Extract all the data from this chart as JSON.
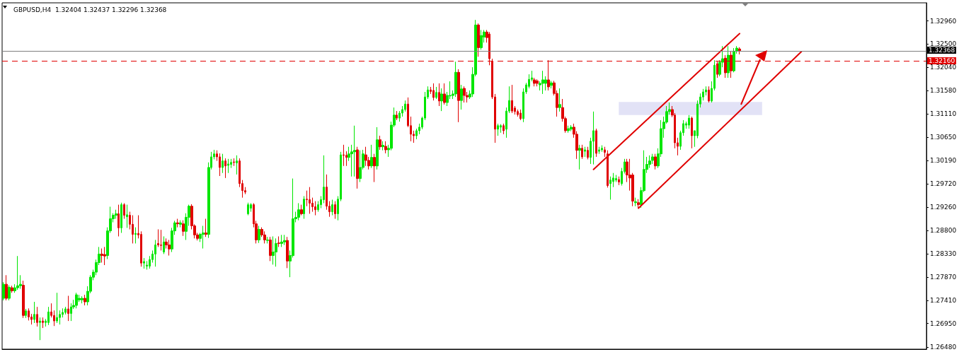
{
  "chart_data": {
    "type": "candlestick",
    "title": "GBPUSD,H4  1.32404 1.32437 1.32296 1.32368",
    "categories": [
      null,
      null,
      null,
      null,
      null,
      null,
      null,
      null,
      null,
      null,
      null,
      null,
      null,
      null,
      null,
      null,
      null,
      null,
      null,
      null,
      null,
      null,
      null,
      null,
      null,
      null,
      null,
      null,
      null,
      null,
      null,
      null,
      null,
      null,
      null,
      null,
      null,
      null,
      null,
      null,
      null,
      null,
      null,
      null,
      null,
      null,
      null,
      null,
      null,
      null,
      null,
      null,
      null,
      null,
      null,
      null,
      null,
      null,
      null,
      null,
      null,
      null,
      null,
      null,
      null,
      null,
      null,
      null,
      null,
      null,
      null,
      null,
      null,
      null,
      null,
      null,
      null,
      null,
      null,
      null,
      null,
      null,
      null,
      null,
      null,
      null,
      null,
      null,
      null,
      null,
      null,
      null,
      null,
      null,
      null,
      null,
      null,
      null,
      null,
      null,
      null,
      null,
      null,
      null,
      null,
      null,
      null,
      null,
      null,
      null,
      null,
      null,
      null,
      null,
      null,
      null,
      null,
      null,
      null,
      null,
      null,
      null,
      null,
      null,
      null,
      null,
      null,
      null,
      null,
      null,
      null,
      null,
      null,
      null,
      null,
      null,
      null,
      null,
      null,
      null,
      null,
      null,
      null,
      null,
      null,
      null,
      null,
      null,
      null,
      null,
      null,
      null,
      null,
      null,
      null,
      null,
      null,
      null,
      null,
      null,
      null,
      null,
      null,
      null,
      null,
      null,
      null,
      null,
      null,
      null,
      null,
      null,
      null,
      null,
      null,
      null,
      null,
      null,
      null,
      null,
      null,
      null,
      null,
      null,
      null,
      null,
      null,
      null,
      null,
      null,
      null,
      null,
      null,
      null,
      null,
      null,
      null,
      null,
      null,
      null,
      null,
      null,
      null,
      null,
      null,
      null,
      null,
      null,
      null,
      null,
      null,
      null,
      null,
      null,
      null,
      null,
      null,
      null,
      null,
      null,
      null,
      null,
      null,
      null,
      null,
      null,
      null,
      null,
      null,
      null,
      null,
      null,
      null,
      null,
      null,
      null,
      null,
      null,
      null,
      null,
      null,
      null,
      null,
      null,
      null,
      null,
      null,
      null,
      null,
      null,
      null,
      null,
      null,
      null,
      null,
      null,
      null,
      null,
      null,
      null,
      null,
      null,
      null,
      null,
      null,
      null,
      null,
      null,
      null,
      null,
      null,
      null,
      null,
      null,
      null,
      null,
      null,
      null,
      null,
      null,
      null,
      null,
      null,
      null,
      null,
      null,
      null,
      null,
      null,
      null,
      null,
      null,
      null,
      null,
      null,
      null,
      null,
      null,
      null,
      null,
      null,
      null,
      null,
      null,
      null,
      null,
      null,
      null,
      null,
      null,
      null,
      null,
      null,
      null,
      null,
      null,
      null,
      null,
      null,
      null,
      null,
      null,
      null,
      null,
      null,
      null,
      null,
      null,
      null
    ],
    "ohlc": [
      [
        1.2745,
        1.2777,
        1.2741,
        1.2773
      ],
      [
        1.2773,
        1.2791,
        1.2741,
        1.2745
      ],
      [
        1.2745,
        1.2771,
        1.2741,
        1.2767
      ],
      [
        1.2766,
        1.277,
        1.2756,
        1.276
      ],
      [
        1.276,
        1.2773,
        1.2756,
        1.2766
      ],
      [
        1.2766,
        1.2829,
        1.2762,
        1.277
      ],
      [
        1.277,
        1.2791,
        1.2764,
        1.2773
      ],
      [
        1.2771,
        1.278,
        1.2706,
        1.2711
      ],
      [
        1.2711,
        1.2724,
        1.2706,
        1.272
      ],
      [
        1.272,
        1.2725,
        1.2701,
        1.2708
      ],
      [
        1.2708,
        1.2714,
        1.2693,
        1.2703
      ],
      [
        1.2703,
        1.2738,
        1.2696,
        1.2713
      ],
      [
        1.2713,
        1.2728,
        1.2689,
        1.2697
      ],
      [
        1.2697,
        1.2707,
        1.2662,
        1.27
      ],
      [
        1.27,
        1.2707,
        1.2686,
        1.2697
      ],
      [
        1.2697,
        1.2704,
        1.2689,
        1.27
      ],
      [
        1.2697,
        1.2728,
        1.2692,
        1.2718
      ],
      [
        1.2718,
        1.2735,
        1.2707,
        1.2711
      ],
      [
        1.2711,
        1.2721,
        1.269,
        1.27
      ],
      [
        1.27,
        1.2756,
        1.2696,
        1.2707
      ],
      [
        1.2707,
        1.2721,
        1.2693,
        1.2713
      ],
      [
        1.2713,
        1.2725,
        1.2707,
        1.2717
      ],
      [
        1.2717,
        1.2728,
        1.2713,
        1.2724
      ],
      [
        1.2724,
        1.275,
        1.27,
        1.2715
      ],
      [
        1.2715,
        1.2735,
        1.27,
        1.2728
      ],
      [
        1.2728,
        1.2742,
        1.2724,
        1.2731
      ],
      [
        1.2731,
        1.2756,
        1.2725,
        1.2752
      ],
      [
        1.2742,
        1.2752,
        1.2738,
        1.2745
      ],
      [
        1.2742,
        1.2749,
        1.2735,
        1.2745
      ],
      [
        1.2745,
        1.2752,
        1.2731,
        1.2738
      ],
      [
        1.2738,
        1.2769,
        1.2731,
        1.2759
      ],
      [
        1.2759,
        1.2791,
        1.2755,
        1.2787
      ],
      [
        1.2787,
        1.2802,
        1.2781,
        1.2797
      ],
      [
        1.2797,
        1.2822,
        1.2791,
        1.2816
      ],
      [
        1.2816,
        1.2847,
        1.2811,
        1.2833
      ],
      [
        1.2833,
        1.2844,
        1.2816,
        1.283
      ],
      [
        1.2832,
        1.2847,
        1.2811,
        1.2829
      ],
      [
        1.283,
        1.2886,
        1.2823,
        1.2879
      ],
      [
        1.2879,
        1.2927,
        1.2875,
        1.2903
      ],
      [
        1.2903,
        1.2914,
        1.2896,
        1.291
      ],
      [
        1.291,
        1.2921,
        1.2903,
        1.2913
      ],
      [
        1.2913,
        1.2931,
        1.2868,
        1.2885
      ],
      [
        1.2885,
        1.2935,
        1.2875,
        1.2931
      ],
      [
        1.2931,
        1.2934,
        1.2903,
        1.291
      ],
      [
        1.2907,
        1.2931,
        1.2885,
        1.2911
      ],
      [
        1.291,
        1.2917,
        1.2882,
        1.2892
      ],
      [
        1.2892,
        1.291,
        1.2854,
        1.2872
      ],
      [
        1.2872,
        1.2886,
        1.2854,
        1.2874
      ],
      [
        1.2874,
        1.291,
        1.2864,
        1.2871
      ],
      [
        1.2872,
        1.2878,
        1.2808,
        1.2815
      ],
      [
        1.2815,
        1.2825,
        1.2804,
        1.2818
      ],
      [
        1.2809,
        1.2819,
        1.2802,
        1.2811
      ],
      [
        1.2809,
        1.2829,
        1.2804,
        1.2822
      ],
      [
        1.2822,
        1.284,
        1.2816,
        1.2833
      ],
      [
        1.2833,
        1.2861,
        1.2808,
        1.2851
      ],
      [
        1.2854,
        1.2882,
        1.2847,
        1.2851
      ],
      [
        1.2851,
        1.2881,
        1.284,
        1.285
      ],
      [
        1.2837,
        1.2868,
        1.2833,
        1.2857
      ],
      [
        1.2857,
        1.2864,
        1.2844,
        1.2851
      ],
      [
        1.2851,
        1.2861,
        1.283,
        1.2843
      ],
      [
        1.2843,
        1.2885,
        1.2837,
        1.2879
      ],
      [
        1.2879,
        1.2899,
        1.2871,
        1.2895
      ],
      [
        1.2895,
        1.2903,
        1.2886,
        1.2893
      ],
      [
        1.2892,
        1.29,
        1.2886,
        1.2895
      ],
      [
        1.2893,
        1.29,
        1.2869,
        1.2878
      ],
      [
        1.2878,
        1.2914,
        1.2861,
        1.2906
      ],
      [
        1.2906,
        1.2931,
        1.2889,
        1.2928
      ],
      [
        1.2928,
        1.2932,
        1.2882,
        1.2889
      ],
      [
        1.2889,
        1.2892,
        1.2864,
        1.2871
      ],
      [
        1.2871,
        1.2875,
        1.286,
        1.2864
      ],
      [
        1.2864,
        1.2875,
        1.2857,
        1.2872
      ],
      [
        1.2872,
        1.2889,
        1.2844,
        1.2875
      ],
      [
        1.2875,
        1.2903,
        1.2867,
        1.2872
      ],
      [
        1.2872,
        1.3015,
        1.2865,
        1.3005
      ],
      [
        1.3005,
        1.3036,
        1.3001,
        1.3026
      ],
      [
        1.3026,
        1.304,
        1.3021,
        1.3032
      ],
      [
        1.3032,
        1.3039,
        1.3018,
        1.3026
      ],
      [
        1.3026,
        1.3033,
        1.2988,
        1.3005
      ],
      [
        1.3005,
        1.3032,
        1.2994,
        1.3018
      ],
      [
        1.3018,
        1.3023,
        1.2984,
        1.3008
      ],
      [
        1.3009,
        1.3022,
        1.2994,
        1.3012
      ],
      [
        1.3011,
        1.3022,
        1.3004,
        1.3015
      ],
      [
        1.3016,
        1.3023,
        1.3008,
        1.3015
      ],
      [
        1.3014,
        1.3029,
        1.2991,
        1.3018
      ],
      [
        1.3018,
        1.3023,
        1.2966,
        1.2973
      ],
      [
        1.2973,
        1.298,
        1.2945,
        1.2959
      ],
      [
        1.2959,
        1.2966,
        1.2952,
        1.2956
      ],
      [
        1.2913,
        1.2935,
        1.291,
        1.2931
      ],
      [
        1.2924,
        1.2934,
        1.2917,
        1.2931
      ],
      [
        1.2931,
        1.2934,
        1.2886,
        1.2893
      ],
      [
        1.2893,
        1.2899,
        1.2854,
        1.2861
      ],
      [
        1.2861,
        1.2889,
        1.2855,
        1.2882
      ],
      [
        1.2882,
        1.2886,
        1.2867,
        1.2871
      ],
      [
        1.2871,
        1.2878,
        1.2854,
        1.2861
      ],
      [
        1.286,
        1.2867,
        1.2854,
        1.2861
      ],
      [
        1.2861,
        1.2867,
        1.2819,
        1.283
      ],
      [
        1.283,
        1.2868,
        1.2812,
        1.2837
      ],
      [
        1.2837,
        1.2864,
        1.2808,
        1.2854
      ],
      [
        1.2855,
        1.2868,
        1.2847,
        1.2854
      ],
      [
        1.2854,
        1.2871,
        1.2847,
        1.2857
      ],
      [
        1.2857,
        1.2871,
        1.2851,
        1.286
      ],
      [
        1.286,
        1.2867,
        1.2805,
        1.2819
      ],
      [
        1.2819,
        1.284,
        1.2787,
        1.283
      ],
      [
        1.283,
        1.2983,
        1.2826,
        1.2903
      ],
      [
        1.2903,
        1.2917,
        1.2896,
        1.2906
      ],
      [
        1.2906,
        1.2934,
        1.29,
        1.2921
      ],
      [
        1.2921,
        1.2931,
        1.291,
        1.2913
      ],
      [
        1.2913,
        1.2948,
        1.2903,
        1.2942
      ],
      [
        1.2942,
        1.2959,
        1.2928,
        1.2941
      ],
      [
        1.2941,
        1.2966,
        1.2913,
        1.2934
      ],
      [
        1.2934,
        1.2945,
        1.2917,
        1.2927
      ],
      [
        1.2927,
        1.2938,
        1.291,
        1.2921
      ],
      [
        1.2921,
        1.2938,
        1.2917,
        1.2931
      ],
      [
        1.2931,
        1.2948,
        1.2924,
        1.2941
      ],
      [
        1.2941,
        1.3029,
        1.2934,
        1.2966
      ],
      [
        1.2966,
        1.2991,
        1.2921,
        1.2928
      ],
      [
        1.2928,
        1.2938,
        1.2907,
        1.2917
      ],
      [
        1.2917,
        1.2941,
        1.291,
        1.2931
      ],
      [
        1.2931,
        1.2938,
        1.2903,
        1.2913
      ],
      [
        1.2913,
        1.2948,
        1.29,
        1.2942
      ],
      [
        1.2942,
        1.3036,
        1.2938,
        1.303
      ],
      [
        1.303,
        1.305,
        1.3008,
        1.3029
      ],
      [
        1.3029,
        1.3037,
        1.3008,
        1.3025
      ],
      [
        1.3025,
        1.3046,
        1.3018,
        1.3032
      ],
      [
        1.3032,
        1.305,
        1.2987,
        1.3036
      ],
      [
        1.3036,
        1.3088,
        1.2987,
        1.3039
      ],
      [
        1.304,
        1.3046,
        1.2963,
        1.2983
      ],
      [
        1.2983,
        1.3039,
        1.2976,
        1.3005
      ],
      [
        1.3005,
        1.304,
        1.3001,
        1.3032
      ],
      [
        1.303,
        1.3046,
        1.3008,
        1.3019
      ],
      [
        1.3019,
        1.3026,
        1.3001,
        1.3008
      ],
      [
        1.3008,
        1.305,
        1.3004,
        1.3025
      ],
      [
        1.3025,
        1.3032,
        1.2976,
        1.3008
      ],
      [
        1.3008,
        1.3085,
        1.3001,
        1.306
      ],
      [
        1.306,
        1.3068,
        1.304,
        1.3046
      ],
      [
        1.3046,
        1.3057,
        1.3039,
        1.3049
      ],
      [
        1.3047,
        1.3057,
        1.3033,
        1.304
      ],
      [
        1.304,
        1.305,
        1.3026,
        1.3043
      ],
      [
        1.3043,
        1.3096,
        1.3039,
        1.3089
      ],
      [
        1.3089,
        1.3124,
        1.3085,
        1.3109
      ],
      [
        1.3109,
        1.3117,
        1.3099,
        1.3103
      ],
      [
        1.3103,
        1.3117,
        1.3096,
        1.3113
      ],
      [
        1.3113,
        1.3127,
        1.3106,
        1.312
      ],
      [
        1.312,
        1.3138,
        1.3116,
        1.3131
      ],
      [
        1.3131,
        1.3144,
        1.3085,
        1.3088
      ],
      [
        1.3088,
        1.3106,
        1.3057,
        1.3071
      ],
      [
        1.3071,
        1.3078,
        1.3054,
        1.3068
      ],
      [
        1.3068,
        1.3082,
        1.3061,
        1.3078
      ],
      [
        1.3078,
        1.3092,
        1.3071,
        1.3085
      ],
      [
        1.3085,
        1.3106,
        1.3081,
        1.3103
      ],
      [
        1.3103,
        1.3155,
        1.3099,
        1.3145
      ],
      [
        1.3145,
        1.3166,
        1.3141,
        1.3159
      ],
      [
        1.3159,
        1.3165,
        1.3151,
        1.3156
      ],
      [
        1.3158,
        1.3172,
        1.3138,
        1.3144
      ],
      [
        1.3144,
        1.3165,
        1.3141,
        1.3154
      ],
      [
        1.3154,
        1.3172,
        1.3127,
        1.3137
      ],
      [
        1.3137,
        1.3162,
        1.3117,
        1.3151
      ],
      [
        1.3151,
        1.3172,
        1.313,
        1.3134
      ],
      [
        1.3134,
        1.3155,
        1.3127,
        1.3148
      ],
      [
        1.3147,
        1.3176,
        1.3141,
        1.3148
      ],
      [
        1.3148,
        1.3158,
        1.3141,
        1.3151
      ],
      [
        1.3151,
        1.3215,
        1.3145,
        1.3194
      ],
      [
        1.3194,
        1.32,
        1.3095,
        1.3138
      ],
      [
        1.3138,
        1.3169,
        1.312,
        1.3161
      ],
      [
        1.3162,
        1.3166,
        1.3134,
        1.3148
      ],
      [
        1.3148,
        1.3155,
        1.3134,
        1.3145
      ],
      [
        1.3145,
        1.3158,
        1.3141,
        1.3151
      ],
      [
        1.3151,
        1.3204,
        1.3145,
        1.319
      ],
      [
        1.319,
        1.3298,
        1.3186,
        1.3288
      ],
      [
        1.3288,
        1.3291,
        1.3225,
        1.3243
      ],
      [
        1.3243,
        1.3278,
        1.3239,
        1.3267
      ],
      [
        1.3264,
        1.3278,
        1.3253,
        1.3274
      ],
      [
        1.3274,
        1.3278,
        1.3253,
        1.3263
      ],
      [
        1.327,
        1.3274,
        1.3208,
        1.3221
      ],
      [
        1.3215,
        1.3221,
        1.3141,
        1.3145
      ],
      [
        1.3145,
        1.3151,
        1.3054,
        1.3081
      ],
      [
        1.3081,
        1.3092,
        1.3068,
        1.3088
      ],
      [
        1.3085,
        1.3091,
        1.3074,
        1.3088
      ],
      [
        1.3088,
        1.3092,
        1.3071,
        1.3078
      ],
      [
        1.3081,
        1.3124,
        1.3064,
        1.3117
      ],
      [
        1.3117,
        1.3166,
        1.3113,
        1.3138
      ],
      [
        1.3138,
        1.3169,
        1.3113,
        1.3117
      ],
      [
        1.3123,
        1.3127,
        1.311,
        1.3116
      ],
      [
        1.3116,
        1.312,
        1.3106,
        1.311
      ],
      [
        1.3113,
        1.312,
        1.3099,
        1.3102
      ],
      [
        1.3102,
        1.3162,
        1.3095,
        1.3155
      ],
      [
        1.3155,
        1.3173,
        1.3151,
        1.3169
      ],
      [
        1.3166,
        1.319,
        1.3162,
        1.318
      ],
      [
        1.318,
        1.3197,
        1.3176,
        1.3183
      ],
      [
        1.3179,
        1.3183,
        1.3166,
        1.3172
      ],
      [
        1.3177,
        1.318,
        1.3166,
        1.3172
      ],
      [
        1.3169,
        1.3176,
        1.3158,
        1.3172
      ],
      [
        1.3172,
        1.3197,
        1.3151,
        1.3179
      ],
      [
        1.3172,
        1.3186,
        1.3158,
        1.3179
      ],
      [
        1.3179,
        1.3218,
        1.3158,
        1.3165
      ],
      [
        1.3168,
        1.3177,
        1.3162,
        1.3173
      ],
      [
        1.3173,
        1.3177,
        1.3148,
        1.3152
      ],
      [
        1.3152,
        1.3158,
        1.3106,
        1.3124
      ],
      [
        1.3124,
        1.3162,
        1.3116,
        1.313
      ],
      [
        1.3124,
        1.3141,
        1.3096,
        1.3102
      ],
      [
        1.3102,
        1.3106,
        1.3074,
        1.3078
      ],
      [
        1.3078,
        1.3088,
        1.3074,
        1.3082
      ],
      [
        1.3081,
        1.3089,
        1.3077,
        1.3085
      ],
      [
        1.3085,
        1.3092,
        1.3064,
        1.3071
      ],
      [
        1.3071,
        1.3077,
        1.3022,
        1.3039
      ],
      [
        1.3039,
        1.305,
        1.3001,
        1.3043
      ],
      [
        1.3043,
        1.305,
        1.3022,
        1.3026
      ],
      [
        1.3037,
        1.3046,
        1.3026,
        1.304
      ],
      [
        1.3039,
        1.3046,
        1.3021,
        1.3025
      ],
      [
        1.3025,
        1.3064,
        1.3012,
        1.3057
      ],
      [
        1.3057,
        1.3116,
        1.3011,
        1.3078
      ],
      [
        1.3078,
        1.3082,
        1.3026,
        1.3033
      ],
      [
        1.3037,
        1.3046,
        1.3032,
        1.304
      ],
      [
        1.304,
        1.3049,
        1.3036,
        1.3043
      ],
      [
        1.304,
        1.3046,
        1.3026,
        1.3035
      ],
      [
        1.3032,
        1.3039,
        1.2965,
        1.2969
      ],
      [
        1.2973,
        1.2987,
        1.2941,
        1.298
      ],
      [
        1.2977,
        1.2994,
        1.2966,
        1.2984
      ],
      [
        1.298,
        1.299,
        1.2976,
        1.2983
      ],
      [
        1.2981,
        1.2987,
        1.297,
        1.2976
      ],
      [
        1.2973,
        1.3004,
        1.2969,
        1.2997
      ],
      [
        1.2997,
        1.3022,
        1.2993,
        1.3016
      ],
      [
        1.3016,
        1.3022,
        1.2976,
        1.299
      ],
      [
        1.299,
        1.3022,
        1.2959,
        1.2984
      ],
      [
        1.299,
        1.2994,
        1.2928,
        1.2938
      ],
      [
        1.2935,
        1.2945,
        1.2928,
        1.2937
      ],
      [
        1.2935,
        1.2942,
        1.2924,
        1.2931
      ],
      [
        1.2931,
        1.2966,
        1.2925,
        1.2959
      ],
      [
        1.2959,
        1.3039,
        1.2956,
        1.3001
      ],
      [
        1.3001,
        1.3026,
        1.2994,
        1.3011
      ],
      [
        1.3011,
        1.3029,
        1.3004,
        1.3018
      ],
      [
        1.3019,
        1.3032,
        1.3012,
        1.3026
      ],
      [
        1.3026,
        1.3032,
        1.3001,
        1.3008
      ],
      [
        1.3008,
        1.3043,
        1.3004,
        1.3032
      ],
      [
        1.3032,
        1.3099,
        1.3026,
        1.3082
      ],
      [
        1.3082,
        1.3106,
        1.3064,
        1.3095
      ],
      [
        1.3095,
        1.3127,
        1.3092,
        1.3116
      ],
      [
        1.3116,
        1.3134,
        1.311,
        1.312
      ],
      [
        1.312,
        1.3127,
        1.3105,
        1.3109
      ],
      [
        1.3109,
        1.3113,
        1.3043,
        1.3054
      ],
      [
        1.3054,
        1.3064,
        1.3029,
        1.3047
      ],
      [
        1.3047,
        1.3078,
        1.304,
        1.3074
      ],
      [
        1.3074,
        1.3099,
        1.3068,
        1.3092
      ],
      [
        1.3089,
        1.3096,
        1.3082,
        1.3092
      ],
      [
        1.3089,
        1.3109,
        1.3082,
        1.3103
      ],
      [
        1.3103,
        1.3106,
        1.3043,
        1.3068
      ],
      [
        1.3068,
        1.3078,
        1.3046,
        1.3078
      ],
      [
        1.3068,
        1.3138,
        1.3063,
        1.3131
      ],
      [
        1.3131,
        1.3152,
        1.3124,
        1.3145
      ],
      [
        1.3145,
        1.3161,
        1.3138,
        1.3155
      ],
      [
        1.3155,
        1.3166,
        1.3148,
        1.3159
      ],
      [
        1.3159,
        1.3166,
        1.3134,
        1.3137
      ],
      [
        1.3137,
        1.3176,
        1.3134,
        1.3162
      ],
      [
        1.3162,
        1.3218,
        1.3158,
        1.3208
      ],
      [
        1.3211,
        1.3215,
        1.3183,
        1.319
      ],
      [
        1.319,
        1.3218,
        1.3186,
        1.3214
      ],
      [
        1.3214,
        1.3246,
        1.3204,
        1.3221
      ],
      [
        1.3222,
        1.3228,
        1.3183,
        1.3193
      ],
      [
        1.3193,
        1.3246,
        1.3183,
        1.3228
      ],
      [
        1.3228,
        1.3236,
        1.3183,
        1.3197
      ],
      [
        1.3197,
        1.3242,
        1.3194,
        1.3236
      ],
      [
        1.3236,
        1.3246,
        1.3231,
        1.3242
      ],
      [
        1.32404,
        1.32437,
        1.32296,
        1.32368
      ],
      null,
      null,
      null,
      null,
      null,
      null,
      null,
      null,
      null,
      null,
      null,
      null,
      null,
      null,
      null,
      null,
      null,
      null,
      null,
      null,
      null,
      null,
      null,
      null,
      null,
      null,
      null,
      null,
      null,
      null,
      null,
      null,
      null,
      null,
      null,
      null,
      null,
      null,
      null,
      null,
      null,
      null,
      null,
      null,
      null,
      null,
      null,
      null,
      null,
      null,
      null,
      null,
      null,
      null,
      null,
      null,
      null,
      null,
      null,
      null,
      null,
      null,
      null,
      null,
      null,
      null
    ],
    "series": [
      {
        "type": "line",
        "color": "#e00000",
        "values": [
          null,
          null,
          null,
          null,
          null,
          null,
          null,
          null,
          null,
          null,
          null,
          null,
          null,
          null,
          null,
          null,
          null,
          null,
          null,
          null,
          null,
          null,
          null,
          null,
          null,
          null,
          null,
          null,
          null,
          null,
          null,
          null,
          null,
          null,
          null,
          null,
          null,
          null,
          null,
          null,
          null,
          null,
          null,
          null,
          null,
          null,
          null,
          null,
          null,
          null,
          null,
          null,
          null,
          null,
          null,
          null,
          null,
          null,
          null,
          null,
          null,
          null,
          null,
          null,
          null,
          null,
          null,
          null,
          null,
          null,
          null,
          null,
          null,
          null,
          null,
          null,
          null,
          null,
          null,
          null,
          null,
          null,
          null,
          null,
          null,
          null,
          null,
          null,
          null,
          null,
          null,
          null,
          null,
          null,
          null,
          null,
          null,
          null,
          null,
          null,
          null,
          null,
          null,
          null,
          null,
          null,
          null,
          null,
          null,
          null,
          null,
          null,
          null,
          null,
          null,
          null,
          null,
          null,
          null,
          null,
          null,
          null,
          null,
          null,
          null,
          null,
          null,
          null,
          null,
          null,
          null,
          null,
          null,
          null,
          null,
          null,
          null,
          null,
          null,
          null,
          null,
          null,
          null,
          null,
          null,
          null,
          null,
          null,
          null,
          null,
          null,
          null,
          null,
          null,
          null,
          null,
          null,
          null,
          null,
          null,
          null,
          null,
          null,
          null,
          null,
          null,
          null,
          null,
          null,
          null,
          null,
          null,
          null,
          null,
          null,
          null,
          null,
          null,
          null,
          null,
          null,
          null,
          null,
          null,
          null,
          null,
          null,
          null,
          null,
          null,
          null,
          null,
          null,
          null,
          null,
          null,
          null,
          null,
          null,
          null,
          null,
          null,
          null,
          null,
          null,
          null,
          null,
          null,
          null,
          null,
          1.3001,
          null,
          null,
          null,
          null,
          null,
          null,
          null,
          null,
          null,
          null,
          null,
          null,
          null,
          null,
          null,
          null,
          null,
          null,
          null,
          null,
          null,
          null,
          null,
          null,
          null,
          null,
          null,
          null,
          null,
          null,
          null,
          null,
          null,
          null,
          null,
          null,
          null,
          null,
          null,
          null,
          null,
          null,
          null,
          null,
          null,
          null,
          null,
          null,
          null,
          null,
          null,
          1.3271,
          null,
          null,
          null,
          null,
          null,
          null,
          null,
          null,
          null,
          null,
          null,
          null,
          null,
          null,
          null,
          null,
          null,
          null,
          null,
          null,
          null,
          null,
          null,
          null,
          null,
          null,
          null,
          null,
          null,
          null,
          null,
          null,
          null,
          null,
          null,
          null,
          null,
          null,
          null,
          null,
          null,
          null,
          null,
          null,
          null,
          null,
          null,
          null,
          null,
          null,
          null,
          null,
          null,
          null,
          null,
          null,
          null,
          null,
          null,
          null,
          null,
          null,
          null,
          null,
          null,
          null
        ]
      },
      {
        "type": "line",
        "color": "#e00000",
        "values": [
          null,
          null,
          null,
          null,
          null,
          null,
          null,
          null,
          null,
          null,
          null,
          null,
          null,
          null,
          null,
          null,
          null,
          null,
          null,
          null,
          null,
          null,
          null,
          null,
          null,
          null,
          null,
          null,
          null,
          null,
          null,
          null,
          null,
          null,
          null,
          null,
          null,
          null,
          null,
          null,
          null,
          null,
          null,
          null,
          null,
          null,
          null,
          null,
          null,
          null,
          null,
          null,
          null,
          null,
          null,
          null,
          null,
          null,
          null,
          null,
          null,
          null,
          null,
          null,
          null,
          null,
          null,
          null,
          null,
          null,
          null,
          null,
          null,
          null,
          null,
          null,
          null,
          null,
          null,
          null,
          null,
          null,
          null,
          null,
          null,
          null,
          null,
          null,
          null,
          null,
          null,
          null,
          null,
          null,
          null,
          null,
          null,
          null,
          null,
          null,
          null,
          null,
          null,
          null,
          null,
          null,
          null,
          null,
          null,
          null,
          null,
          null,
          null,
          null,
          null,
          null,
          null,
          null,
          null,
          null,
          null,
          null,
          null,
          null,
          null,
          null,
          null,
          null,
          null,
          null,
          null,
          null,
          null,
          null,
          null,
          null,
          null,
          null,
          null,
          null,
          null,
          null,
          null,
          null,
          null,
          null,
          null,
          null,
          null,
          null,
          null,
          null,
          null,
          null,
          null,
          null,
          null,
          null,
          null,
          null,
          null,
          null,
          null,
          null,
          null,
          null,
          null,
          null,
          null,
          null,
          null,
          null,
          null,
          null,
          null,
          null,
          null,
          null,
          null,
          null,
          null,
          null,
          null,
          null,
          null,
          null,
          null,
          null,
          null,
          null,
          null,
          null,
          null,
          null,
          null,
          null,
          null,
          null,
          null,
          null,
          null,
          null,
          null,
          null,
          null,
          null,
          null,
          null,
          null,
          null,
          null,
          null,
          null,
          null,
          null,
          null,
          null,
          null,
          null,
          null,
          null,
          null,
          null,
          null,
          null,
          null,
          1.2924,
          null,
          null,
          null,
          null,
          null,
          null,
          null,
          null,
          null,
          null,
          null,
          null,
          null,
          null,
          null,
          null,
          null,
          null,
          null,
          null,
          null,
          null,
          null,
          null,
          null,
          null,
          null,
          null,
          null,
          null,
          null,
          null,
          null,
          null,
          null,
          null,
          null,
          null,
          null,
          null,
          null,
          null,
          null,
          null,
          null,
          null,
          null,
          null,
          null,
          null,
          null,
          null,
          null,
          null,
          null,
          null,
          null,
          1.3235,
          null,
          null,
          null,
          null,
          null,
          null,
          null,
          null,
          null,
          null,
          null,
          null,
          null,
          null,
          null,
          null,
          null,
          null,
          null,
          null,
          null,
          null,
          null,
          null,
          null,
          null,
          null,
          null,
          null,
          null,
          null,
          null,
          null,
          null,
          null,
          null,
          null,
          null,
          null,
          null,
          null,
          null,
          null,
          null
        ]
      }
    ],
    "ylim": [
      1.2644,
      1.3332
    ],
    "yticks": [
      {
        "value": 1.2648,
        "label": "1.26480"
      },
      {
        "value": 1.2695,
        "label": "1.26950"
      },
      {
        "value": 1.2741,
        "label": "1.27410"
      },
      {
        "value": 1.2787,
        "label": "1.27870"
      },
      {
        "value": 1.2833,
        "label": "1.28330"
      },
      {
        "value": 1.288,
        "label": "1.28800"
      },
      {
        "value": 1.2926,
        "label": "1.29260"
      },
      {
        "value": 1.2972,
        "label": "1.29720"
      },
      {
        "value": 1.3019,
        "label": "1.30190"
      },
      {
        "value": 1.3065,
        "label": "1.30650"
      },
      {
        "value": 1.3111,
        "label": "1.31110"
      },
      {
        "value": 1.3158,
        "label": "1.31580"
      },
      {
        "value": 1.3204,
        "label": "1.32040"
      },
      {
        "value": 1.325,
        "label": "1.32500"
      },
      {
        "value": 1.3296,
        "label": "1.32960"
      }
    ],
    "ref_lines": [
      {
        "axis": "y",
        "value": 1.32368,
        "label": "1.32368",
        "color": "#808080",
        "line_style": "solid"
      },
      {
        "axis": "y",
        "value": 1.3216,
        "label": "1.32160",
        "color": "#e00000",
        "line_style": "dashed"
      }
    ],
    "bands": [
      {
        "axis": "y",
        "from": 1.3109,
        "to": 1.3135,
        "color": "#e2e2f6"
      }
    ],
    "grid": false,
    "tick_labels": "y",
    "line_style": "solid"
  }
}
